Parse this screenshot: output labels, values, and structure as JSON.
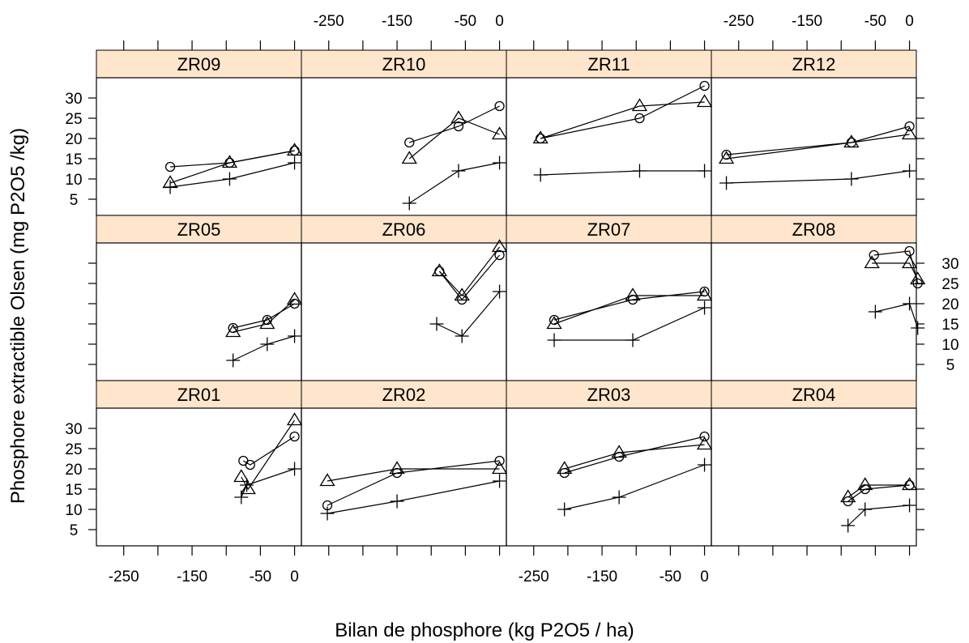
{
  "chart_data": {
    "type": "line",
    "xlabel": "Bilan de phosphore (kg P2O5 / ha)",
    "ylabel": "Phosphore extractible Olsen (mg P2O5 /kg)",
    "xlim": [
      -290,
      10
    ],
    "ylim": [
      1,
      35
    ],
    "x_ticks": [
      -250,
      -200,
      -150,
      -100,
      -50,
      0
    ],
    "x_tick_labels": [
      "-250",
      "-150",
      "-50",
      "0"
    ],
    "y_ticks": [
      5,
      10,
      15,
      20,
      25,
      30
    ],
    "y_tick_labels": [
      "5",
      "10",
      "15",
      "20",
      "25",
      "30"
    ],
    "layout": {
      "columns": 4,
      "rows": 3
    },
    "series_markers": [
      "circle",
      "triangle",
      "plus"
    ],
    "panels": [
      {
        "name": "ZR09",
        "series": [
          {
            "marker": "circle",
            "x": [
              -182,
              -95,
              0
            ],
            "y": [
              13,
              14,
              17
            ]
          },
          {
            "marker": "triangle",
            "x": [
              -182,
              -95,
              0
            ],
            "y": [
              9,
              14,
              17
            ]
          },
          {
            "marker": "plus",
            "x": [
              -182,
              -95,
              0
            ],
            "y": [
              8,
              10,
              14
            ]
          }
        ]
      },
      {
        "name": "ZR10",
        "series": [
          {
            "marker": "circle",
            "x": [
              -132,
              -60,
              0
            ],
            "y": [
              19,
              23,
              28
            ]
          },
          {
            "marker": "triangle",
            "x": [
              -132,
              -60,
              0
            ],
            "y": [
              15,
              25,
              21
            ]
          },
          {
            "marker": "plus",
            "x": [
              -132,
              -60,
              0
            ],
            "y": [
              4,
              12,
              14
            ]
          }
        ]
      },
      {
        "name": "ZR11",
        "series": [
          {
            "marker": "circle",
            "x": [
              -240,
              -95,
              0
            ],
            "y": [
              20,
              25,
              33
            ]
          },
          {
            "marker": "triangle",
            "x": [
              -240,
              -95,
              0
            ],
            "y": [
              20,
              28,
              29
            ]
          },
          {
            "marker": "plus",
            "x": [
              -240,
              -95,
              0
            ],
            "y": [
              11,
              12,
              12
            ]
          }
        ]
      },
      {
        "name": "ZR12",
        "series": [
          {
            "marker": "circle",
            "x": [
              -268,
              -85,
              0
            ],
            "y": [
              16,
              19,
              23
            ]
          },
          {
            "marker": "triangle",
            "x": [
              -268,
              -85,
              0
            ],
            "y": [
              15,
              19,
              21
            ]
          },
          {
            "marker": "plus",
            "x": [
              -268,
              -85,
              0
            ],
            "y": [
              9,
              10,
              12
            ]
          }
        ]
      },
      {
        "name": "ZR05",
        "series": [
          {
            "marker": "circle",
            "x": [
              -90,
              -40,
              0
            ],
            "y": [
              14,
              16,
              20
            ]
          },
          {
            "marker": "triangle",
            "x": [
              -90,
              -40,
              0
            ],
            "y": [
              13,
              15,
              21
            ]
          },
          {
            "marker": "plus",
            "x": [
              -90,
              -40,
              0
            ],
            "y": [
              6,
              10,
              12
            ]
          }
        ]
      },
      {
        "name": "ZR06",
        "series": [
          {
            "marker": "circle",
            "x": [
              -88,
              -55,
              0
            ],
            "y": [
              28,
              21,
              32
            ]
          },
          {
            "marker": "triangle",
            "x": [
              -88,
              -55,
              0
            ],
            "y": [
              28,
              22,
              34
            ]
          },
          {
            "marker": "plus",
            "x": [
              -92,
              -55,
              0
            ],
            "y": [
              15,
              12,
              23
            ]
          }
        ]
      },
      {
        "name": "ZR07",
        "series": [
          {
            "marker": "circle",
            "x": [
              -220,
              -105,
              0
            ],
            "y": [
              16,
              21,
              23
            ]
          },
          {
            "marker": "triangle",
            "x": [
              -220,
              -105,
              0
            ],
            "y": [
              15,
              22,
              22
            ]
          },
          {
            "marker": "plus",
            "x": [
              -220,
              -105,
              0
            ],
            "y": [
              11,
              11,
              19
            ]
          }
        ]
      },
      {
        "name": "ZR08",
        "series": [
          {
            "marker": "circle",
            "x": [
              -52,
              0,
              12
            ],
            "y": [
              32,
              33,
              25
            ]
          },
          {
            "marker": "triangle",
            "x": [
              -55,
              0,
              12
            ],
            "y": [
              30,
              30,
              26
            ]
          },
          {
            "marker": "plus",
            "x": [
              -50,
              0,
              12
            ],
            "y": [
              18,
              20,
              14
            ]
          }
        ]
      },
      {
        "name": "ZR01",
        "series": [
          {
            "marker": "circle",
            "x": [
              -75,
              -65,
              0
            ],
            "y": [
              22,
              21,
              28
            ]
          },
          {
            "marker": "triangle",
            "x": [
              -78,
              -68,
              0
            ],
            "y": [
              18,
              15,
              32
            ]
          },
          {
            "marker": "plus",
            "x": [
              -78,
              -70,
              0
            ],
            "y": [
              13,
              16,
              20
            ]
          }
        ]
      },
      {
        "name": "ZR02",
        "series": [
          {
            "marker": "circle",
            "x": [
              -252,
              -150,
              0
            ],
            "y": [
              11,
              19,
              22
            ]
          },
          {
            "marker": "triangle",
            "x": [
              -252,
              -150,
              0
            ],
            "y": [
              17,
              20,
              20
            ]
          },
          {
            "marker": "plus",
            "x": [
              -252,
              -150,
              0
            ],
            "y": [
              9,
              12,
              17
            ]
          }
        ]
      },
      {
        "name": "ZR03",
        "series": [
          {
            "marker": "circle",
            "x": [
              -205,
              -125,
              0
            ],
            "y": [
              19,
              23,
              28
            ]
          },
          {
            "marker": "triangle",
            "x": [
              -205,
              -125,
              0
            ],
            "y": [
              20,
              24,
              26
            ]
          },
          {
            "marker": "plus",
            "x": [
              -205,
              -125,
              0
            ],
            "y": [
              10,
              13,
              21
            ]
          }
        ]
      },
      {
        "name": "ZR04",
        "series": [
          {
            "marker": "circle",
            "x": [
              -90,
              -65,
              0
            ],
            "y": [
              12,
              15,
              16
            ]
          },
          {
            "marker": "triangle",
            "x": [
              -90,
              -65,
              0
            ],
            "y": [
              13,
              16,
              16
            ]
          },
          {
            "marker": "plus",
            "x": [
              -90,
              -65,
              0
            ],
            "y": [
              6,
              10,
              11
            ]
          }
        ]
      }
    ]
  }
}
